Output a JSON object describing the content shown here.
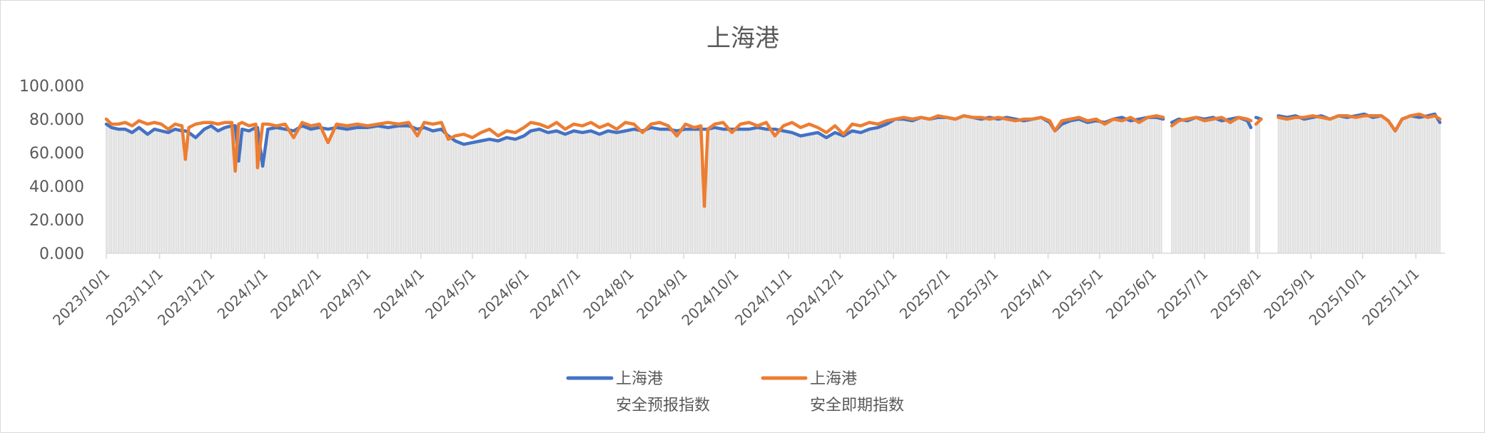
{
  "chart_data": {
    "type": "line",
    "title": "上海港",
    "xlabel": "",
    "ylabel": "",
    "xlim": [
      "2023-10-01",
      "2025-11-18"
    ],
    "ylim": [
      0,
      100
    ],
    "y_ticks": [
      "0.000",
      "20.000",
      "40.000",
      "60.000",
      "80.000",
      "100.000"
    ],
    "x_ticks": [
      "2023/10/1",
      "2023/11/1",
      "2023/12/1",
      "2024/1/1",
      "2024/2/1",
      "2024/3/1",
      "2024/4/1",
      "2024/5/1",
      "2024/6/1",
      "2024/7/1",
      "2024/8/1",
      "2024/9/1",
      "2024/10/1",
      "2024/11/1",
      "2024/12/1",
      "2025/1/1",
      "2025/2/1",
      "2025/3/1",
      "2025/4/1",
      "2025/5/1",
      "2025/6/1",
      "2025/7/1",
      "2025/8/1",
      "2025/9/1",
      "2025/10/1",
      "2025/11/1"
    ],
    "grid": false,
    "legend_position": "bottom",
    "background_columns": "gray daily columns under the lines",
    "colors": {
      "series1": "#4472C4",
      "series2": "#ED7D31",
      "columns": "#d9d9d9",
      "text": "#595959"
    },
    "series": [
      {
        "name": "上海港\n安全预报指数",
        "name_lines": [
          "上海港",
          "安全预报指数"
        ]
      },
      {
        "name": "上海港\n安全即期指数",
        "name_lines": [
          "上海港",
          "安全即期指数"
        ]
      }
    ],
    "points": [
      [
        "2023-10-01",
        77,
        80
      ],
      [
        "2023-10-04",
        75,
        77
      ],
      [
        "2023-10-08",
        74,
        77
      ],
      [
        "2023-10-12",
        74,
        78
      ],
      [
        "2023-10-16",
        72,
        76
      ],
      [
        "2023-10-20",
        75,
        79
      ],
      [
        "2023-10-25",
        71,
        77
      ],
      [
        "2023-10-29",
        74,
        78
      ],
      [
        "2023-11-02",
        73,
        77
      ],
      [
        "2023-11-06",
        72,
        74
      ],
      [
        "2023-11-10",
        74,
        77
      ],
      [
        "2023-11-14",
        73,
        76
      ],
      [
        "2023-11-16",
        73,
        56
      ],
      [
        "2023-11-18",
        72,
        75
      ],
      [
        "2023-11-22",
        69,
        77
      ],
      [
        "2023-11-27",
        74,
        78
      ],
      [
        "2023-12-01",
        76,
        78
      ],
      [
        "2023-12-05",
        73,
        77
      ],
      [
        "2023-12-09",
        75,
        78
      ],
      [
        "2023-12-13",
        76,
        78
      ],
      [
        "2023-12-15",
        76,
        49
      ],
      [
        "2023-12-17",
        55,
        77
      ],
      [
        "2023-12-19",
        74,
        78
      ],
      [
        "2023-12-23",
        73,
        76
      ],
      [
        "2023-12-27",
        75,
        77
      ],
      [
        "2023-12-28",
        75,
        51
      ],
      [
        "2023-12-31",
        52,
        77
      ],
      [
        "2024-01-03",
        74,
        77
      ],
      [
        "2024-01-08",
        75,
        76
      ],
      [
        "2024-01-13",
        74,
        77
      ],
      [
        "2024-01-18",
        73,
        69
      ],
      [
        "2024-01-23",
        76,
        78
      ],
      [
        "2024-01-28",
        74,
        76
      ],
      [
        "2024-02-02",
        75,
        77
      ],
      [
        "2024-02-07",
        74,
        66
      ],
      [
        "2024-02-12",
        75,
        77
      ],
      [
        "2024-02-18",
        74,
        76
      ],
      [
        "2024-02-24",
        75,
        77
      ],
      [
        "2024-03-01",
        75,
        76
      ],
      [
        "2024-03-07",
        76,
        77
      ],
      [
        "2024-03-13",
        75,
        78
      ],
      [
        "2024-03-19",
        76,
        77
      ],
      [
        "2024-03-25",
        76,
        78
      ],
      [
        "2024-03-30",
        74,
        70
      ],
      [
        "2024-04-03",
        75,
        78
      ],
      [
        "2024-04-08",
        73,
        77
      ],
      [
        "2024-04-13",
        74,
        78
      ],
      [
        "2024-04-17",
        70,
        68
      ],
      [
        "2024-04-21",
        67,
        70
      ],
      [
        "2024-04-26",
        65,
        71
      ],
      [
        "2024-05-01",
        66,
        69
      ],
      [
        "2024-05-06",
        67,
        72
      ],
      [
        "2024-05-11",
        68,
        74
      ],
      [
        "2024-05-16",
        67,
        70
      ],
      [
        "2024-05-21",
        69,
        73
      ],
      [
        "2024-05-26",
        68,
        72
      ],
      [
        "2024-05-31",
        70,
        75
      ],
      [
        "2024-06-04",
        73,
        78
      ],
      [
        "2024-06-09",
        74,
        77
      ],
      [
        "2024-06-14",
        72,
        75
      ],
      [
        "2024-06-19",
        73,
        78
      ],
      [
        "2024-06-24",
        71,
        74
      ],
      [
        "2024-06-29",
        73,
        77
      ],
      [
        "2024-07-04",
        72,
        76
      ],
      [
        "2024-07-09",
        73,
        78
      ],
      [
        "2024-07-14",
        71,
        75
      ],
      [
        "2024-07-19",
        73,
        77
      ],
      [
        "2024-07-24",
        72,
        74
      ],
      [
        "2024-07-29",
        73,
        78
      ],
      [
        "2024-08-03",
        74,
        77
      ],
      [
        "2024-08-08",
        73,
        72
      ],
      [
        "2024-08-13",
        75,
        77
      ],
      [
        "2024-08-18",
        74,
        78
      ],
      [
        "2024-08-23",
        74,
        76
      ],
      [
        "2024-08-28",
        73,
        70
      ],
      [
        "2024-09-02",
        74,
        77
      ],
      [
        "2024-09-07",
        74,
        75
      ],
      [
        "2024-09-11",
        74,
        76
      ],
      [
        "2024-09-13",
        74,
        28
      ],
      [
        "2024-09-15",
        74,
        74
      ],
      [
        "2024-09-19",
        75,
        77
      ],
      [
        "2024-09-24",
        74,
        78
      ],
      [
        "2024-09-29",
        74,
        72
      ],
      [
        "2024-10-04",
        74,
        77
      ],
      [
        "2024-10-09",
        74,
        78
      ],
      [
        "2024-10-14",
        75,
        76
      ],
      [
        "2024-10-19",
        74,
        78
      ],
      [
        "2024-10-24",
        74,
        70
      ],
      [
        "2024-10-29",
        73,
        76
      ],
      [
        "2024-11-03",
        72,
        78
      ],
      [
        "2024-11-08",
        70,
        75
      ],
      [
        "2024-11-13",
        71,
        77
      ],
      [
        "2024-11-18",
        72,
        75
      ],
      [
        "2024-11-23",
        69,
        72
      ],
      [
        "2024-11-28",
        72,
        76
      ],
      [
        "2024-12-03",
        70,
        71
      ],
      [
        "2024-12-08",
        73,
        77
      ],
      [
        "2024-12-13",
        72,
        76
      ],
      [
        "2024-12-18",
        74,
        78
      ],
      [
        "2024-12-23",
        75,
        77
      ],
      [
        "2024-12-28",
        77,
        79
      ],
      [
        "2025-01-02",
        80,
        80
      ],
      [
        "2025-01-07",
        80,
        81
      ],
      [
        "2025-01-12",
        79,
        80
      ],
      [
        "2025-01-17",
        81,
        81
      ],
      [
        "2025-01-22",
        80,
        80
      ],
      [
        "2025-01-27",
        81,
        82
      ],
      [
        "2025-02-01",
        81,
        81
      ],
      [
        "2025-02-06",
        80,
        80
      ],
      [
        "2025-02-11",
        82,
        82
      ],
      [
        "2025-02-16",
        81,
        81
      ],
      [
        "2025-02-21",
        80,
        81
      ],
      [
        "2025-02-26",
        81,
        80
      ],
      [
        "2025-03-03",
        80,
        81
      ],
      [
        "2025-03-08",
        81,
        80
      ],
      [
        "2025-03-13",
        80,
        79
      ],
      [
        "2025-03-18",
        79,
        80
      ],
      [
        "2025-03-23",
        80,
        80
      ],
      [
        "2025-03-28",
        81,
        81
      ],
      [
        "2025-04-02",
        78,
        79
      ],
      [
        "2025-04-05",
        73,
        73
      ],
      [
        "2025-04-09",
        77,
        79
      ],
      [
        "2025-04-14",
        79,
        80
      ],
      [
        "2025-04-19",
        80,
        81
      ],
      [
        "2025-04-24",
        78,
        79
      ],
      [
        "2025-04-29",
        79,
        80
      ],
      [
        "2025-05-04",
        78,
        77
      ],
      [
        "2025-05-09",
        80,
        80
      ],
      [
        "2025-05-14",
        81,
        79
      ],
      [
        "2025-05-19",
        79,
        81
      ],
      [
        "2025-05-24",
        80,
        78
      ],
      [
        "2025-05-29",
        81,
        81
      ],
      [
        "2025-06-03",
        81,
        82
      ],
      [
        "2025-06-07",
        80,
        81
      ],
      [
        "2025-06-08",
        null,
        null
      ],
      [
        "2025-06-11",
        null,
        null
      ],
      [
        "2025-06-12",
        78,
        76
      ],
      [
        "2025-06-16",
        80,
        79
      ],
      [
        "2025-06-21",
        79,
        80
      ],
      [
        "2025-06-26",
        81,
        81
      ],
      [
        "2025-07-01",
        80,
        79
      ],
      [
        "2025-07-06",
        81,
        80
      ],
      [
        "2025-07-11",
        79,
        81
      ],
      [
        "2025-07-16",
        80,
        78
      ],
      [
        "2025-07-21",
        81,
        81
      ],
      [
        "2025-07-26",
        79,
        80
      ],
      [
        "2025-07-28",
        75,
        79
      ],
      [
        "2025-07-29",
        null,
        null
      ],
      [
        "2025-07-30",
        null,
        null
      ],
      [
        "2025-07-31",
        81,
        77
      ],
      [
        "2025-08-03",
        80,
        80
      ],
      [
        "2025-08-04",
        null,
        null
      ],
      [
        "2025-08-12",
        null,
        null
      ],
      [
        "2025-08-13",
        82,
        81
      ],
      [
        "2025-08-18",
        81,
        80
      ],
      [
        "2025-08-23",
        82,
        81
      ],
      [
        "2025-08-28",
        80,
        81
      ],
      [
        "2025-09-02",
        81,
        82
      ],
      [
        "2025-09-07",
        82,
        81
      ],
      [
        "2025-09-12",
        80,
        80
      ],
      [
        "2025-09-17",
        82,
        82
      ],
      [
        "2025-09-22",
        81,
        82
      ],
      [
        "2025-09-27",
        82,
        81
      ],
      [
        "2025-10-02",
        83,
        82
      ],
      [
        "2025-10-07",
        81,
        82
      ],
      [
        "2025-10-12",
        82,
        82
      ],
      [
        "2025-10-16",
        79,
        79
      ],
      [
        "2025-10-20",
        73,
        73
      ],
      [
        "2025-10-24",
        80,
        80
      ],
      [
        "2025-10-29",
        82,
        82
      ],
      [
        "2025-11-03",
        81,
        83
      ],
      [
        "2025-11-08",
        82,
        81
      ],
      [
        "2025-11-12",
        83,
        82
      ],
      [
        "2025-11-15",
        78,
        80
      ]
    ]
  }
}
